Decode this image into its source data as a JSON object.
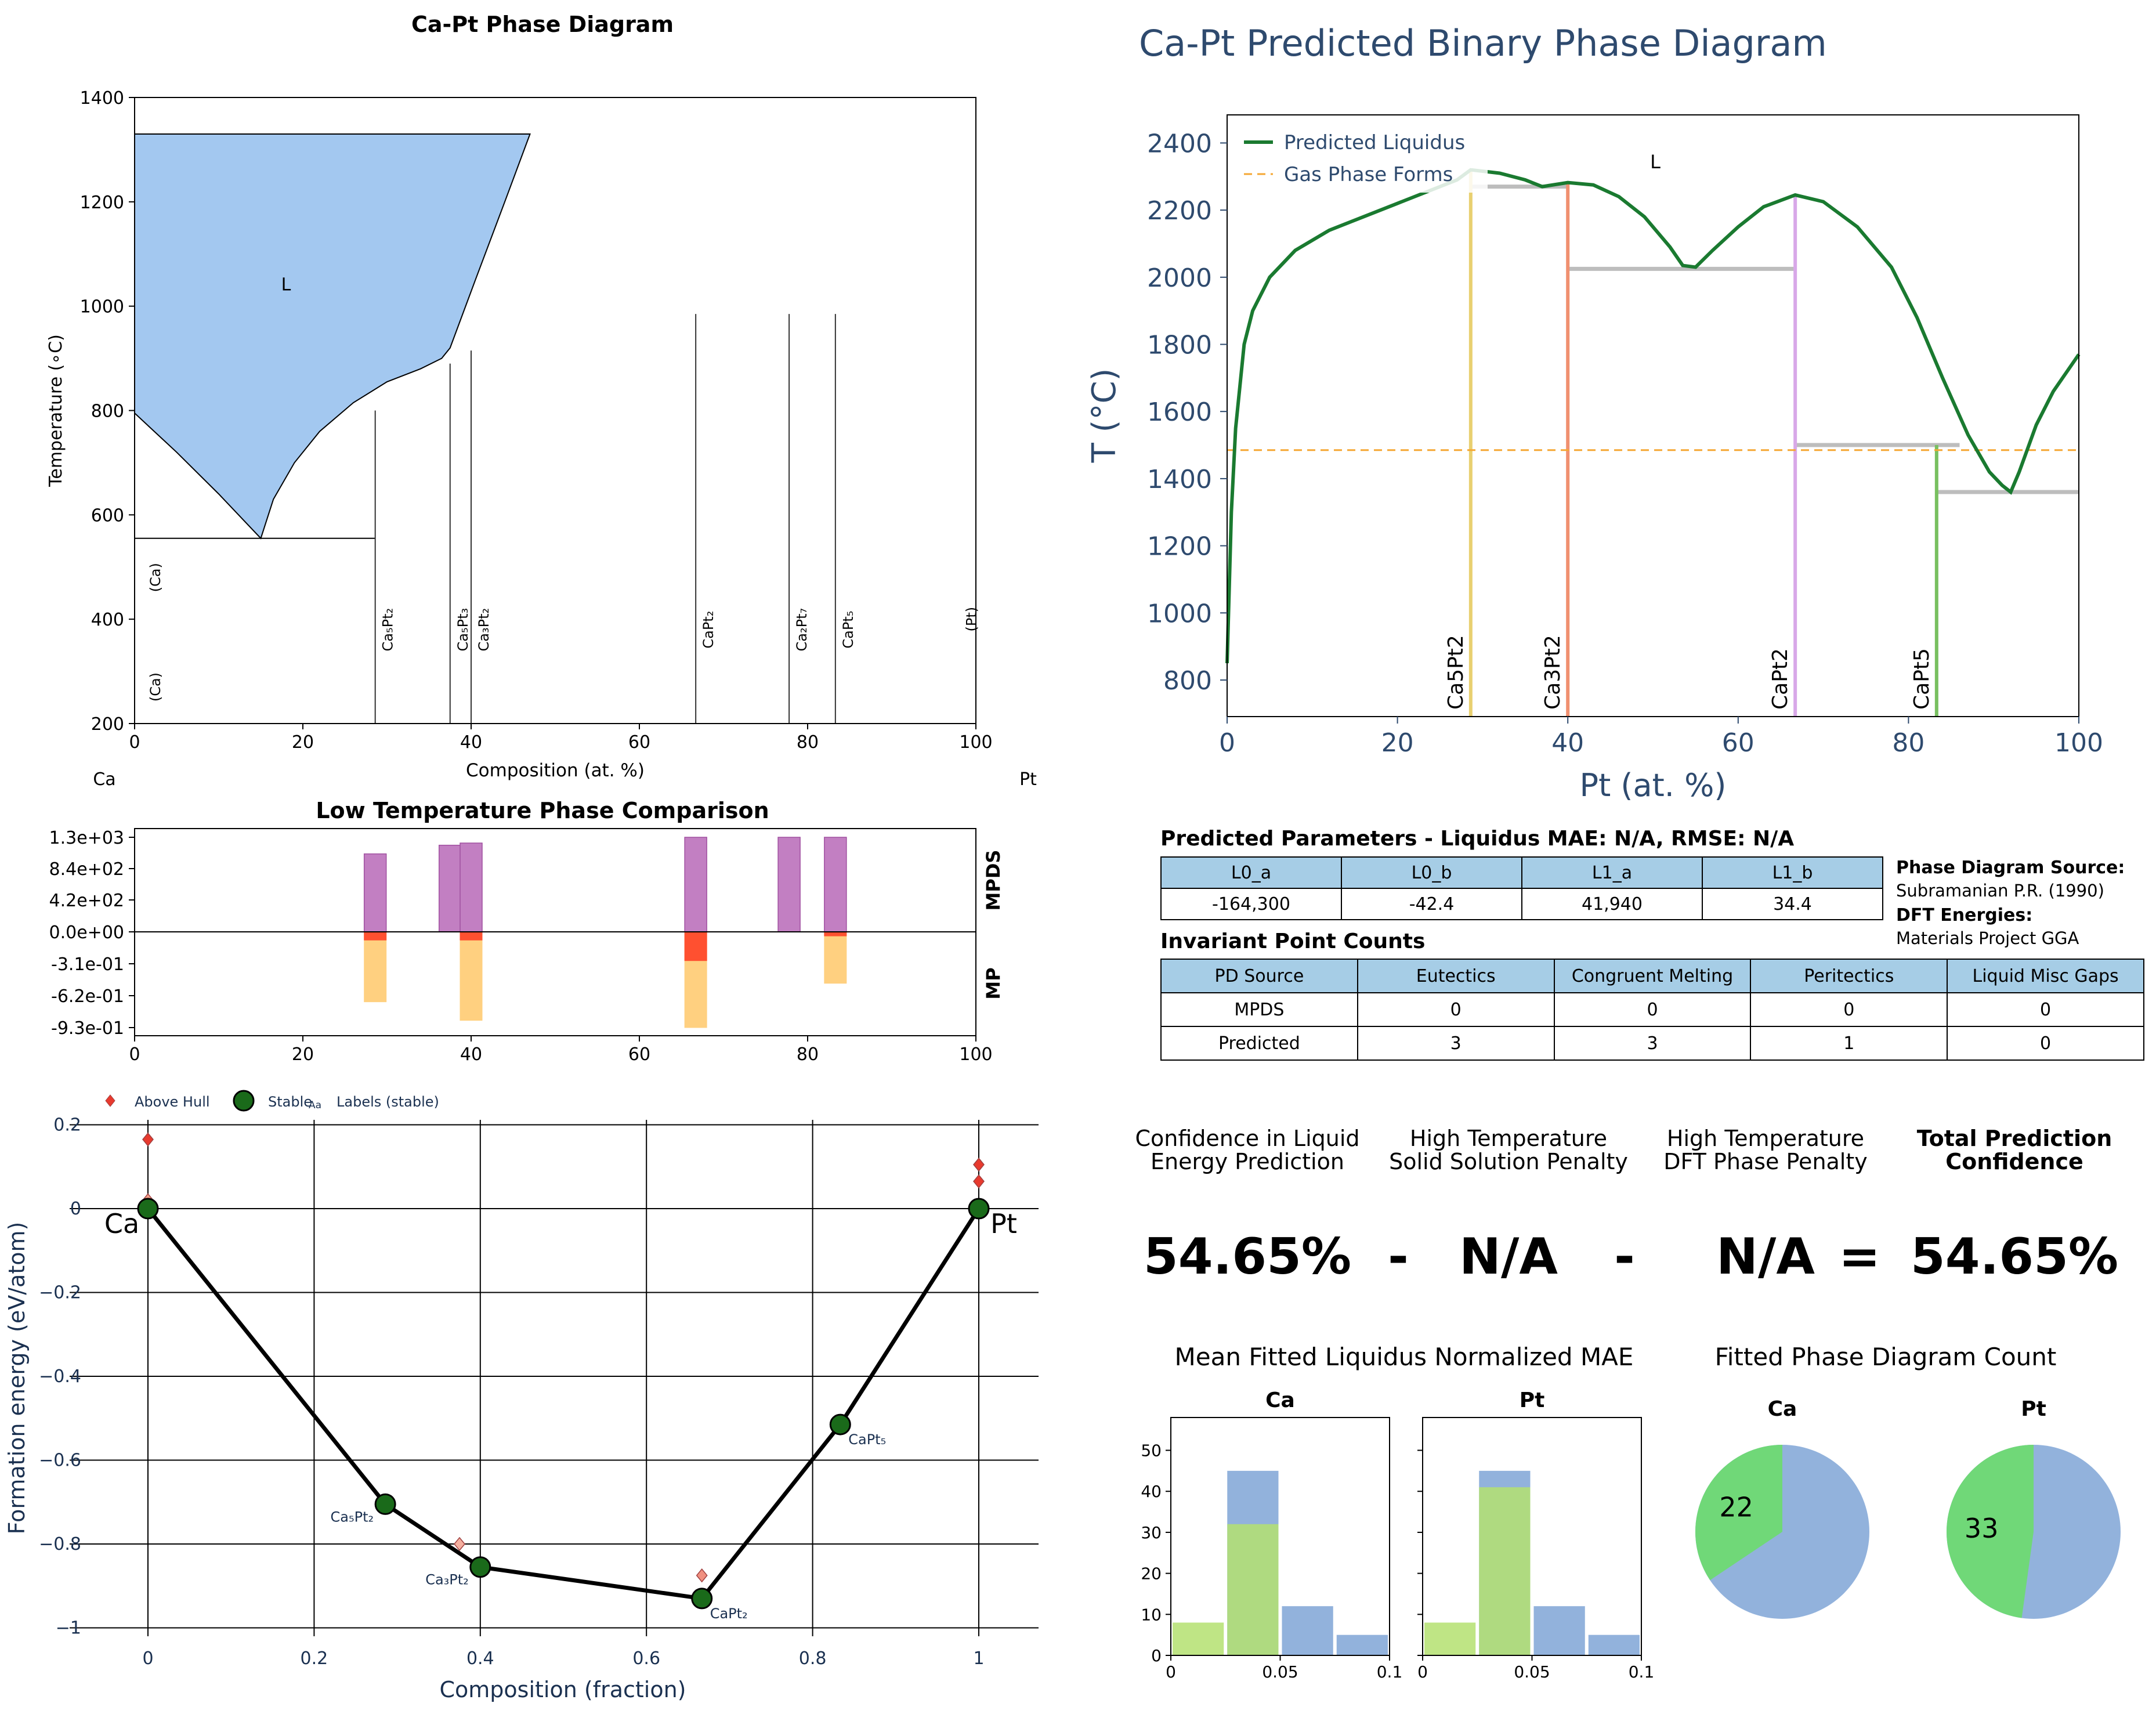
{
  "phase_diagram": {
    "title": "Ca-Pt Phase Diagram",
    "xlabel": "Composition (at. %)",
    "ylabel": "Temperature (∘C)",
    "left_element": "Ca",
    "right_element": "Pt",
    "liquid_label": "L",
    "fill_color": "#a3c8f0",
    "xlim": [
      0,
      100
    ],
    "ylim": [
      200,
      1400
    ],
    "x_ticks": [
      "0",
      "20",
      "40",
      "60",
      "80",
      "100"
    ],
    "y_ticks": [
      "200",
      "400",
      "600",
      "800",
      "1000",
      "1200",
      "1400"
    ],
    "liquid_region": [
      [
        0,
        1330
      ],
      [
        47,
        1330
      ],
      [
        44,
        1200
      ],
      [
        40.5,
        1050
      ],
      [
        37.5,
        920
      ],
      [
        36.5,
        900
      ],
      [
        34,
        880
      ],
      [
        30,
        855
      ],
      [
        26,
        815
      ],
      [
        22,
        760
      ],
      [
        19,
        700
      ],
      [
        16.5,
        630
      ],
      [
        15,
        555
      ],
      [
        10,
        640
      ],
      [
        5,
        720
      ],
      [
        0,
        795
      ]
    ],
    "eutectic_line": {
      "x1": 0,
      "x2": 28.6,
      "t": 555
    },
    "phases": [
      {
        "x": 28.6,
        "top": 800,
        "label": "Ca₅Pt₂"
      },
      {
        "x": 37.5,
        "top": 890,
        "label": "Ca₅Pt₃"
      },
      {
        "x": 40,
        "top": 915,
        "label": "Ca₃Pt₂"
      },
      {
        "x": 66.7,
        "top": 985,
        "label": "CaPt₂"
      },
      {
        "x": 77.8,
        "top": 985,
        "label": "Ca₂Pt₇"
      },
      {
        "x": 83.3,
        "top": 985,
        "label": "CaPt₅"
      }
    ],
    "terminal_labels": [
      {
        "x": 1.5,
        "t": 480,
        "label": "(Ca)"
      },
      {
        "x": 1.5,
        "t": 270,
        "label": "(Ca)"
      },
      {
        "x": 98.5,
        "t": 400,
        "label": "(Pt)"
      }
    ]
  },
  "low_temp": {
    "title": "Low Temperature Phase Comparison",
    "top_label": "MPDS",
    "bottom_label": "MP",
    "y_ticks": [
      "1.3e+03",
      "8.4e+02",
      "4.2e+02",
      "0.0e+00",
      "-3.1e-01",
      "-6.2e-01",
      "-9.3e-01"
    ],
    "x_ticks": [
      "0",
      "20",
      "40",
      "60",
      "80",
      "100"
    ],
    "purple": "#c27fc2",
    "orange": "#ffd080",
    "red": "#ff5030",
    "mpds_bars": [
      {
        "x": 28.6,
        "v": 1080
      },
      {
        "x": 37.5,
        "v": 1200
      },
      {
        "x": 40,
        "v": 1230
      },
      {
        "x": 66.7,
        "v": 1310
      },
      {
        "x": 77.8,
        "v": 1310
      },
      {
        "x": 83.3,
        "v": 1310
      }
    ],
    "mp_bars": [
      {
        "x": 28.6,
        "v": -0.68,
        "red": -0.08
      },
      {
        "x": 40,
        "v": -0.86,
        "red": -0.08
      },
      {
        "x": 66.7,
        "v": -0.93,
        "red": -0.28
      },
      {
        "x": 83.3,
        "v": -0.5,
        "red": -0.04
      }
    ]
  },
  "hull": {
    "xlabel": "Composition (fraction)",
    "ylabel": "Formation energy (eV/atom)",
    "x_ticks": [
      "0",
      "0.2",
      "0.4",
      "0.6",
      "0.8",
      "1"
    ],
    "y_ticks": [
      "0.2",
      "0",
      "−0.2",
      "−0.4",
      "−0.6",
      "−0.8",
      "−1"
    ],
    "legend": {
      "above": "Above Hull",
      "stable": "Stable",
      "labels_marker": "Aa",
      "labels": "Labels (stable)"
    },
    "end_left": "Ca",
    "end_right": "Pt",
    "stable": [
      {
        "x": 0,
        "e": 0,
        "label": ""
      },
      {
        "x": 0.2857,
        "e": -0.705,
        "label": "Ca₅Pt₂"
      },
      {
        "x": 0.4,
        "e": -0.855,
        "label": "Ca₃Pt₂"
      },
      {
        "x": 0.6667,
        "e": -0.93,
        "label": "CaPt₂"
      },
      {
        "x": 0.8333,
        "e": -0.515,
        "label": "CaPt₅"
      },
      {
        "x": 1,
        "e": 0,
        "label": ""
      }
    ],
    "above": [
      {
        "x": 0,
        "e": 0.165,
        "c": "#e83a2e"
      },
      {
        "x": 0,
        "e": 0.02,
        "c": "#f5a08a"
      },
      {
        "x": 0.375,
        "e": -0.8,
        "c": "#f5b0a0"
      },
      {
        "x": 0.6667,
        "e": -0.875,
        "c": "#f09080"
      },
      {
        "x": 1,
        "e": 0.105,
        "c": "#e83a2e"
      },
      {
        "x": 1,
        "e": 0.065,
        "c": "#e83a2e"
      }
    ]
  },
  "predicted": {
    "title": "Ca-Pt Predicted Binary Phase Diagram",
    "xlabel": "Pt (at. %)",
    "ylabel": "T (°C)",
    "liquid_label": "L",
    "legend": {
      "liquidus": "Predicted Liquidus",
      "gas": "Gas Phase Forms"
    },
    "x_ticks": [
      "0",
      "20",
      "40",
      "60",
      "80",
      "100"
    ],
    "y_ticks": [
      "800",
      "1000",
      "1200",
      "1400",
      "1600",
      "1800",
      "2000",
      "2200",
      "2400"
    ],
    "gas_t": 1485,
    "liquidus": [
      [
        0,
        850
      ],
      [
        0.5,
        1300
      ],
      [
        1,
        1550
      ],
      [
        2,
        1800
      ],
      [
        3,
        1900
      ],
      [
        5,
        2000
      ],
      [
        8,
        2080
      ],
      [
        12,
        2140
      ],
      [
        16,
        2180
      ],
      [
        20,
        2220
      ],
      [
        24,
        2260
      ],
      [
        27,
        2290
      ],
      [
        28.6,
        2320
      ],
      [
        32,
        2310
      ],
      [
        35,
        2290
      ],
      [
        37,
        2270
      ],
      [
        40,
        2282
      ],
      [
        43,
        2275
      ],
      [
        46,
        2240
      ],
      [
        49,
        2180
      ],
      [
        52,
        2090
      ],
      [
        53.5,
        2035
      ],
      [
        55,
        2030
      ],
      [
        57,
        2080
      ],
      [
        60,
        2150
      ],
      [
        63,
        2210
      ],
      [
        66.7,
        2245
      ],
      [
        70,
        2225
      ],
      [
        74,
        2150
      ],
      [
        78,
        2030
      ],
      [
        81,
        1880
      ],
      [
        84,
        1700
      ],
      [
        87,
        1530
      ],
      [
        89.5,
        1420
      ],
      [
        91,
        1380
      ],
      [
        92,
        1360
      ],
      [
        93,
        1420
      ],
      [
        95,
        1560
      ],
      [
        97,
        1660
      ],
      [
        100,
        1770
      ]
    ],
    "compounds": [
      {
        "x": 28.6,
        "top": 2320,
        "label": "Ca5Pt2",
        "color": "#e8d070"
      },
      {
        "x": 40,
        "top": 2282,
        "label": "Ca3Pt2",
        "color": "#f09070"
      },
      {
        "x": 66.7,
        "top": 2245,
        "label": "CaPt2",
        "color": "#d8a8e8"
      },
      {
        "x": 83.3,
        "top": 1500,
        "label": "CaPt5",
        "color": "#78c060"
      }
    ],
    "invariants": [
      {
        "x1": 28.6,
        "x2": 40,
        "t": 2270
      },
      {
        "x1": 40,
        "x2": 66.7,
        "t": 2025
      },
      {
        "x1": 66.7,
        "x2": 86,
        "t": 1500
      },
      {
        "x1": 83.3,
        "x2": 100,
        "t": 1360
      }
    ]
  },
  "params": {
    "title": "Predicted Parameters - Liquidus MAE: N/A, RMSE: N/A",
    "headers": [
      "L0_a",
      "L0_b",
      "L1_a",
      "L1_b"
    ],
    "values": [
      "-164,300",
      "-42.4",
      "41,940",
      "34.4"
    ],
    "source_head": "Phase Diagram Source:",
    "source": "Subramanian P.R. (1990)",
    "dft_head": "DFT Energies:",
    "dft": "Materials Project GGA"
  },
  "invariant_counts": {
    "title": "Invariant Point Counts",
    "headers": [
      "PD Source",
      "Eutectics",
      "Congruent Melting",
      "Peritectics",
      "Liquid Misc Gaps"
    ],
    "rows": [
      [
        "MPDS",
        "0",
        "0",
        "0",
        "0"
      ],
      [
        "Predicted",
        "3",
        "3",
        "1",
        "0"
      ]
    ]
  },
  "confidence": {
    "labels": [
      [
        "Confidence in Liquid",
        "Energy Prediction"
      ],
      [
        "High Temperature",
        "Solid Solution Penalty"
      ],
      [
        "High Temperature",
        "DFT Phase Penalty"
      ],
      [
        "Total Prediction",
        "Confidence"
      ]
    ],
    "values": [
      "54.65%",
      "N/A",
      "N/A",
      "54.65%"
    ],
    "ops": [
      "-",
      "-",
      "="
    ]
  },
  "mae": {
    "title": "Mean Fitted Liquidus Normalized MAE",
    "panels": [
      {
        "name": "Ca",
        "blue": [
          0,
          45,
          12,
          5
        ],
        "green": [
          8,
          32,
          0,
          0
        ]
      },
      {
        "name": "Pt",
        "blue": [
          0,
          45,
          12,
          5
        ],
        "green": [
          8,
          41,
          0,
          0
        ]
      }
    ],
    "y_ticks": [
      "0",
      "10",
      "20",
      "30",
      "40",
      "50"
    ],
    "x_ticks": [
      "0",
      "0.05",
      "0.1"
    ],
    "ymax": 58,
    "blue_color": "#92b2dc",
    "green_color": "#b4e070"
  },
  "count": {
    "title": "Fitted Phase Diagram Count",
    "panels": [
      {
        "name": "Ca",
        "green": 22,
        "total": 64
      },
      {
        "name": "Pt",
        "green": 33,
        "total": 69
      }
    ],
    "blue_color": "#92b2dc",
    "green_color": "#70d878"
  }
}
